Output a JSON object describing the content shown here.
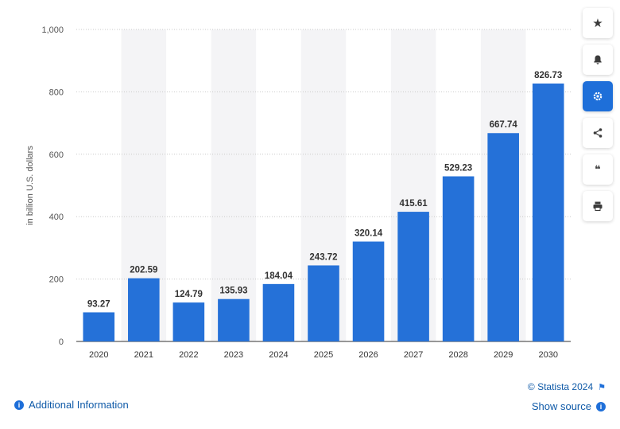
{
  "chart_data": {
    "type": "bar",
    "categories": [
      "2020",
      "2021",
      "2022",
      "2023",
      "2024",
      "2025",
      "2026",
      "2027",
      "2028",
      "2029",
      "2030"
    ],
    "values": [
      93.27,
      202.59,
      124.79,
      135.93,
      184.04,
      243.72,
      320.14,
      415.61,
      529.23,
      667.74,
      826.73
    ],
    "value_labels": [
      "93.27",
      "202.59",
      "124.79",
      "135.93",
      "184.04",
      "243.72",
      "320.14",
      "415.61",
      "529.23",
      "667.74",
      "826.73"
    ],
    "ylabel": "in billion U.S. dollars",
    "ylim": [
      0,
      1000
    ],
    "yticks": [
      0,
      200,
      400,
      600,
      800,
      1000
    ],
    "ytick_labels": [
      "0",
      "200",
      "400",
      "600",
      "800",
      "1,000"
    ],
    "bar_color": "#2571d8",
    "band_color": "#f4f4f6",
    "grid": true
  },
  "toolbar": {
    "buttons": [
      {
        "name": "favorite",
        "icon": "star-icon",
        "glyph": "★"
      },
      {
        "name": "notification",
        "icon": "bell-icon",
        "glyph": "🔔"
      },
      {
        "name": "settings",
        "icon": "gear-icon",
        "glyph": "⚙"
      },
      {
        "name": "share",
        "icon": "share-icon",
        "glyph": "<"
      },
      {
        "name": "cite",
        "icon": "quote-icon",
        "glyph": "❝"
      },
      {
        "name": "print",
        "icon": "printer-icon",
        "glyph": "⎙"
      }
    ]
  },
  "footer": {
    "additional_info": "Additional Information",
    "copyright": "© Statista 2024",
    "show_source": "Show source"
  }
}
